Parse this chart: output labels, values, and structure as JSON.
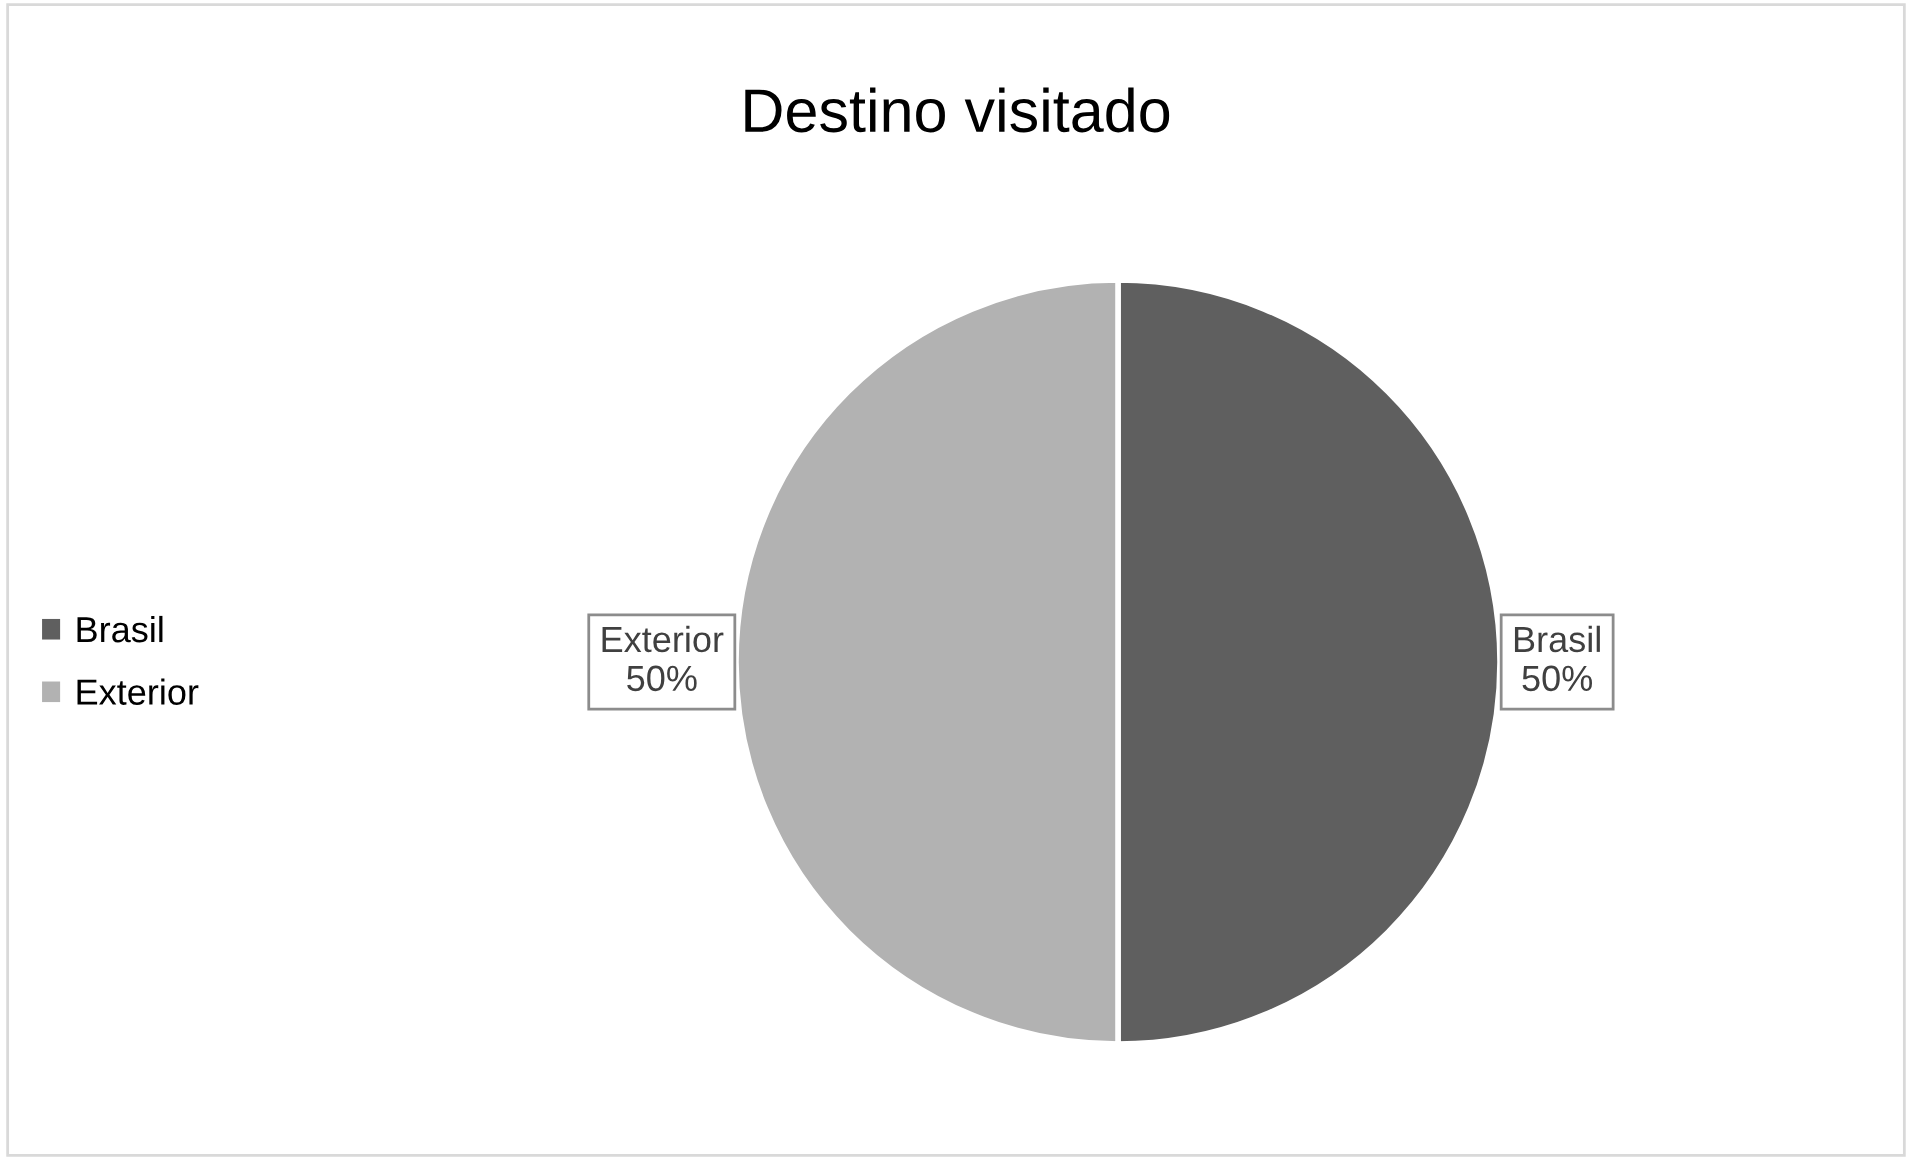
{
  "chart_data": {
    "type": "pie",
    "title": "Destino visitado",
    "categories": [
      "Brasil",
      "Exterior"
    ],
    "values": [
      50,
      50
    ],
    "colors": [
      "#5f5f5f",
      "#b2b2b2"
    ],
    "value_labels": [
      "50%",
      "50%"
    ],
    "legend": "left"
  }
}
